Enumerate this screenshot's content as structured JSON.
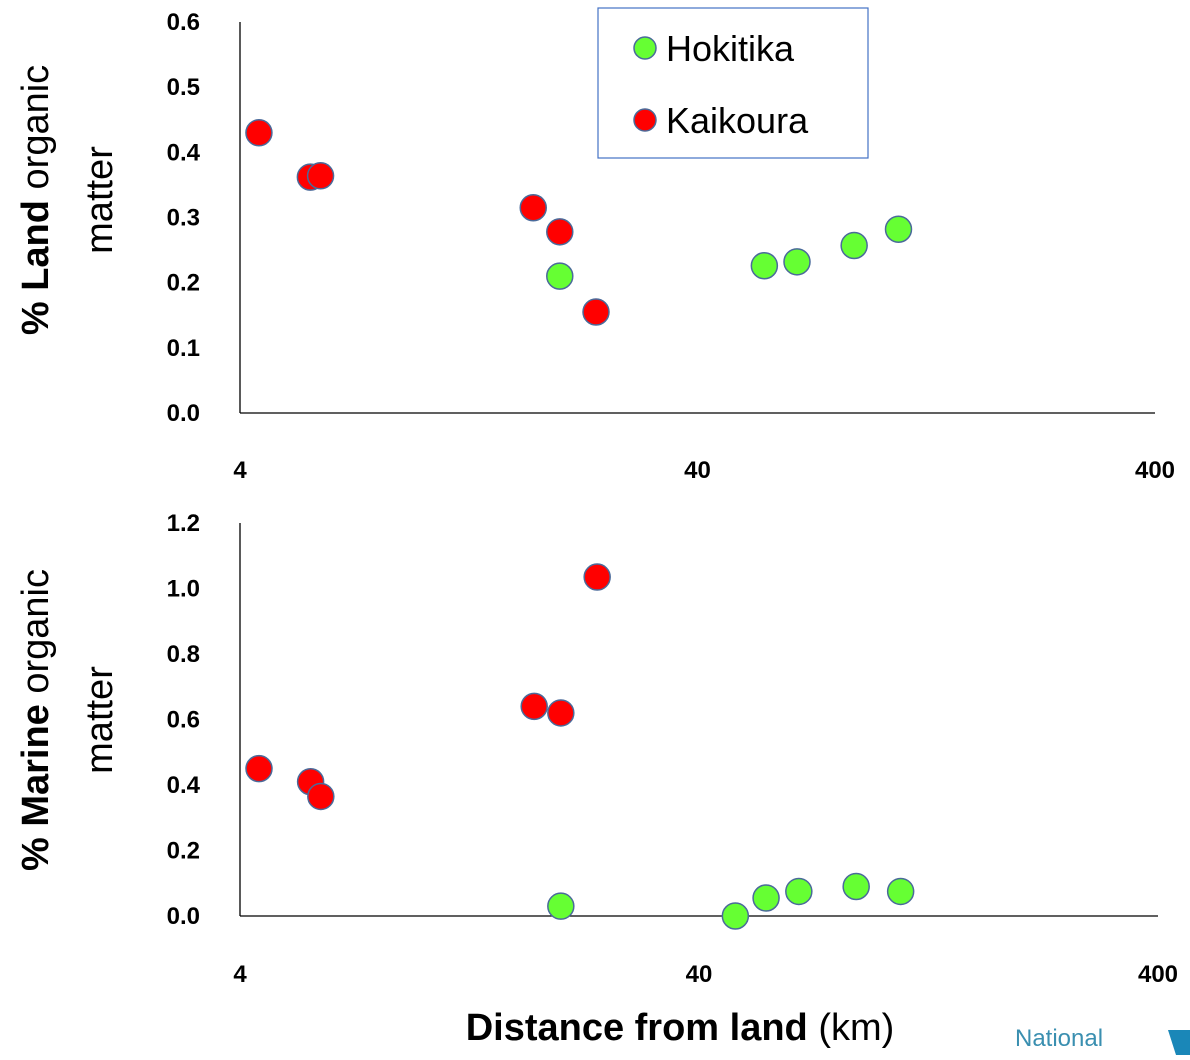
{
  "chart_data": [
    {
      "type": "scatter",
      "ylabel_bold": "% Land",
      "ylabel_rest": " organic",
      "ylabel_line2": "matter",
      "xscale": "log",
      "xlim": [
        4,
        400
      ],
      "ylim": [
        0,
        0.6
      ],
      "xticks": [
        "4",
        "40",
        "400"
      ],
      "yticks": [
        "0.0",
        "0.1",
        "0.2",
        "0.3",
        "0.4",
        "0.5",
        "0.6"
      ],
      "legend": {
        "placement": "top-center",
        "entries": [
          "Hokitika",
          "Kaikoura"
        ]
      },
      "series": [
        {
          "name": "Hokitika",
          "color": "#66ff33",
          "points": [
            [
              20,
              0.21
            ],
            [
              56,
              0.226
            ],
            [
              66,
              0.232
            ],
            [
              88,
              0.257
            ],
            [
              110,
              0.282
            ]
          ]
        },
        {
          "name": "Kaikoura",
          "color": "#ff0000",
          "points": [
            [
              4.4,
              0.43
            ],
            [
              5.7,
              0.362
            ],
            [
              6.0,
              0.364
            ],
            [
              17.5,
              0.315
            ],
            [
              20,
              0.278
            ],
            [
              24,
              0.155
            ]
          ]
        }
      ]
    },
    {
      "type": "scatter",
      "ylabel_bold": "% Marine",
      "ylabel_rest": " organic",
      "ylabel_line2": "matter",
      "xlabel_bold": "Distance from land",
      "xlabel_rest": " (km)",
      "xscale": "log",
      "xlim": [
        4,
        400
      ],
      "ylim": [
        0,
        1.2
      ],
      "xticks": [
        "4",
        "40",
        "400"
      ],
      "yticks": [
        "0.0",
        "0.2",
        "0.4",
        "0.6",
        "0.8",
        "1.0",
        "1.2"
      ],
      "series": [
        {
          "name": "Hokitika",
          "color": "#66ff33",
          "points": [
            [
              20,
              0.03
            ],
            [
              48,
              0.0
            ],
            [
              56,
              0.055
            ],
            [
              66,
              0.075
            ],
            [
              88,
              0.09
            ],
            [
              110,
              0.075
            ]
          ]
        },
        {
          "name": "Kaikoura",
          "color": "#ff0000",
          "points": [
            [
              4.4,
              0.45
            ],
            [
              5.7,
              0.41
            ],
            [
              6.0,
              0.365
            ],
            [
              17.5,
              0.64
            ],
            [
              20,
              0.62
            ],
            [
              24,
              1.035
            ]
          ]
        }
      ]
    }
  ],
  "logo": {
    "text": "National",
    "color": "#3a8fb0"
  }
}
